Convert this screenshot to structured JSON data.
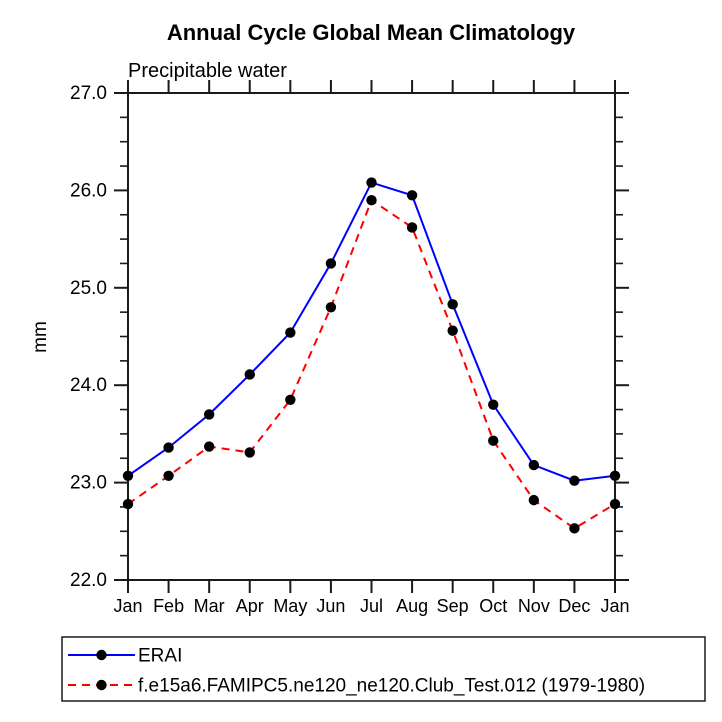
{
  "page": {
    "background": "#ffffff",
    "text_color": "#000000",
    "axis_color": "#1a1a1a"
  },
  "chart_data": {
    "type": "line",
    "title": "Annual Cycle Global Mean Climatology",
    "subtitle": "Precipitable water",
    "ylabel": "mm",
    "xlabel": "",
    "categories": [
      "Jan",
      "Feb",
      "Mar",
      "Apr",
      "May",
      "Jun",
      "Jul",
      "Aug",
      "Sep",
      "Oct",
      "Nov",
      "Dec",
      "Jan"
    ],
    "series": [
      {
        "name": "ERAI",
        "color": "#0000ff",
        "line_style": "solid",
        "marker": "circle",
        "marker_color": "#000000",
        "values": [
          23.07,
          23.36,
          23.7,
          24.11,
          24.54,
          25.25,
          26.08,
          25.95,
          24.83,
          23.8,
          23.18,
          23.02,
          23.07
        ]
      },
      {
        "name": "f.e15a6.FAMIPC5.ne120_ne120.Club_Test.012 (1979-1980)",
        "color": "#ff0000",
        "line_style": "dashed",
        "marker": "circle",
        "marker_color": "#000000",
        "values": [
          22.78,
          23.07,
          23.37,
          23.31,
          23.85,
          24.8,
          25.9,
          25.62,
          24.56,
          23.43,
          22.82,
          22.53,
          22.78
        ]
      }
    ],
    "ylim": [
      22.0,
      27.0
    ],
    "y_major_tick_labels": [
      "22.0",
      "23.0",
      "24.0",
      "25.0",
      "26.0",
      "27.0"
    ],
    "y_minor_step": 0.25,
    "grid": false,
    "legend_position": "bottom-left",
    "ticks_direction": "out"
  }
}
